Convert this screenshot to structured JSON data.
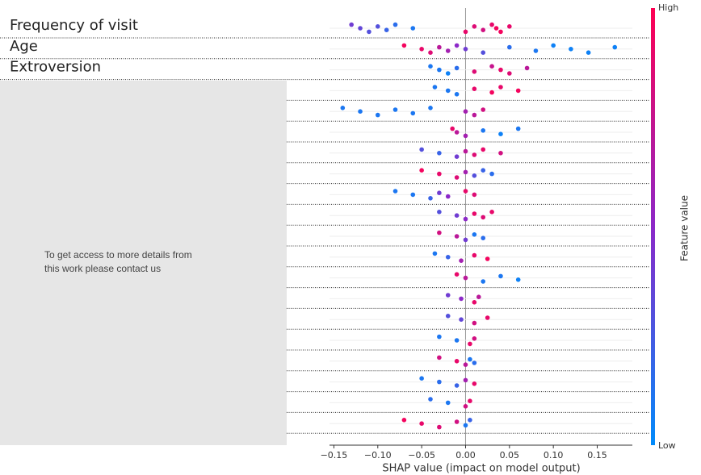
{
  "chart_data": {
    "type": "beeswarm",
    "xlabel": "SHAP value (impact on model output)",
    "categories": [
      "Frequency of visit",
      "Age",
      "Extroversion",
      null,
      null,
      null,
      null,
      null,
      null,
      null,
      null,
      null,
      null,
      null,
      null,
      null,
      null,
      null,
      null,
      null
    ],
    "xlim": [
      -0.155,
      0.19
    ],
    "xticks": [
      {
        "value": -0.15,
        "label": "−0.15"
      },
      {
        "value": -0.1,
        "label": "−0.10"
      },
      {
        "value": -0.05,
        "label": "−0.05"
      },
      {
        "value": 0,
        "label": "0.00"
      },
      {
        "value": 0.05,
        "label": "0.05"
      },
      {
        "value": 0.1,
        "label": "0.10"
      },
      {
        "value": 0.15,
        "label": "0.15"
      }
    ],
    "colorbar": {
      "label": "Feature value",
      "high": "High",
      "low": "Low",
      "range": [
        0,
        1
      ]
    },
    "points": [
      {
        "x": [
          -0.13,
          -0.12,
          -0.11,
          -0.1,
          -0.09,
          -0.08,
          -0.06,
          0.0,
          0.01,
          0.02,
          0.03,
          0.035,
          0.04,
          0.05
        ],
        "c": [
          0.4,
          0.35,
          0.3,
          0.3,
          0.2,
          0.15,
          0.1,
          0.9,
          0.85,
          0.8,
          0.9,
          0.95,
          0.95,
          0.9
        ]
      },
      {
        "x": [
          -0.07,
          -0.05,
          -0.04,
          -0.03,
          -0.02,
          -0.01,
          0.0,
          0.02,
          0.05,
          0.08,
          0.1,
          0.12,
          0.14,
          0.17
        ],
        "c": [
          0.95,
          0.9,
          0.85,
          0.7,
          0.6,
          0.5,
          0.4,
          0.3,
          0.15,
          0.1,
          0.05,
          0.05,
          0.05,
          0.05
        ]
      },
      {
        "x": [
          -0.04,
          -0.03,
          -0.02,
          -0.01,
          0.01,
          0.03,
          0.04,
          0.05,
          0.07
        ],
        "c": [
          0.1,
          0.1,
          0.05,
          0.15,
          0.85,
          0.75,
          0.9,
          0.85,
          0.7
        ]
      },
      {
        "x": [
          -0.035,
          -0.02,
          -0.01,
          0.01,
          0.03,
          0.04,
          0.06
        ],
        "c": [
          0.1,
          0.1,
          0.1,
          0.9,
          0.95,
          0.9,
          0.95
        ]
      },
      {
        "x": [
          -0.14,
          -0.12,
          -0.1,
          -0.08,
          -0.06,
          -0.04,
          0.0,
          0.01,
          0.02
        ],
        "c": [
          0.1,
          0.1,
          0.1,
          0.1,
          0.1,
          0.1,
          0.6,
          0.7,
          0.8
        ]
      },
      {
        "x": [
          -0.015,
          -0.01,
          0.0,
          0.02,
          0.04,
          0.06
        ],
        "c": [
          0.9,
          0.7,
          0.6,
          0.1,
          0.05,
          0.1
        ]
      },
      {
        "x": [
          -0.05,
          -0.03,
          -0.01,
          0.0,
          0.01,
          0.02,
          0.04
        ],
        "c": [
          0.3,
          0.2,
          0.4,
          0.7,
          0.85,
          0.9,
          0.8
        ]
      },
      {
        "x": [
          -0.05,
          -0.03,
          -0.01,
          0.0,
          0.01,
          0.02,
          0.03
        ],
        "c": [
          0.95,
          0.9,
          0.85,
          0.6,
          0.3,
          0.2,
          0.15
        ]
      },
      {
        "x": [
          -0.08,
          -0.06,
          -0.04,
          -0.03,
          -0.02,
          0.0,
          0.01
        ],
        "c": [
          0.1,
          0.1,
          0.2,
          0.4,
          0.5,
          0.9,
          0.85
        ]
      },
      {
        "x": [
          -0.03,
          -0.01,
          0.0,
          0.01,
          0.02,
          0.03
        ],
        "c": [
          0.3,
          0.4,
          0.5,
          0.9,
          0.85,
          0.9
        ]
      },
      {
        "x": [
          -0.03,
          -0.01,
          0.0,
          0.01,
          0.02
        ],
        "c": [
          0.8,
          0.7,
          0.4,
          0.1,
          0.15
        ]
      },
      {
        "x": [
          -0.035,
          -0.02,
          -0.005,
          0.01,
          0.025
        ],
        "c": [
          0.1,
          0.2,
          0.6,
          0.9,
          0.95
        ]
      },
      {
        "x": [
          -0.01,
          0.0,
          0.02,
          0.04,
          0.06
        ],
        "c": [
          0.9,
          0.7,
          0.1,
          0.1,
          0.05
        ]
      },
      {
        "x": [
          -0.02,
          -0.005,
          0.01,
          0.015
        ],
        "c": [
          0.4,
          0.5,
          0.9,
          0.7
        ]
      },
      {
        "x": [
          -0.02,
          -0.005,
          0.01,
          0.025
        ],
        "c": [
          0.3,
          0.35,
          0.8,
          0.9
        ]
      },
      {
        "x": [
          -0.03,
          -0.01,
          0.005,
          0.01
        ],
        "c": [
          0.1,
          0.1,
          0.9,
          0.8
        ]
      },
      {
        "x": [
          -0.03,
          -0.01,
          0.0,
          0.005,
          0.01
        ],
        "c": [
          0.8,
          0.9,
          0.7,
          0.1,
          0.15
        ]
      },
      {
        "x": [
          -0.05,
          -0.03,
          -0.01,
          0.0,
          0.01
        ],
        "c": [
          0.1,
          0.15,
          0.2,
          0.6,
          0.9
        ]
      },
      {
        "x": [
          -0.04,
          -0.02,
          0.0,
          0.005
        ],
        "c": [
          0.15,
          0.1,
          0.8,
          0.9
        ]
      },
      {
        "x": [
          -0.07,
          -0.05,
          -0.03,
          -0.01,
          0.0,
          0.005
        ],
        "c": [
          0.95,
          0.9,
          0.85,
          0.8,
          0.1,
          0.2
        ]
      }
    ]
  },
  "notice": [
    "To get access to more details from",
    "this work please contact us"
  ]
}
